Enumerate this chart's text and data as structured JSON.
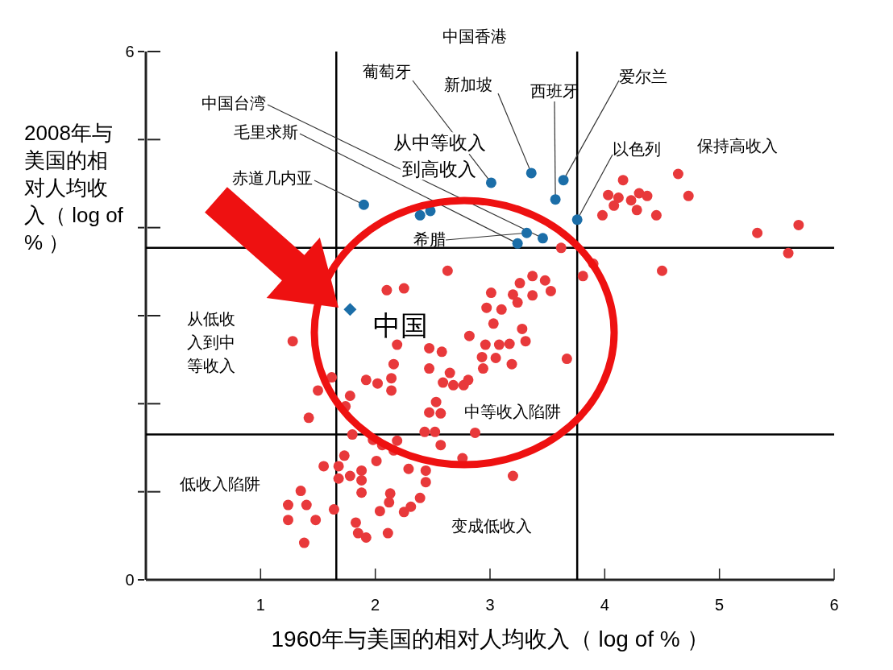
{
  "chart_data": {
    "type": "scatter",
    "xlabel": "1960年与美国的相对人均收入（ log of % ）",
    "ylabel": "2008年与美国的相对人均收入（ log of % ）",
    "xlim": [
      0,
      6
    ],
    "ylim": [
      0,
      6
    ],
    "xticks": [
      1,
      2,
      3,
      4,
      5,
      6
    ],
    "yticks": [
      0,
      {
        "value": 1,
        "label": null
      },
      {
        "value": 2,
        "label": null
      },
      {
        "value": 3,
        "label": null
      },
      {
        "value": 4,
        "label": null
      },
      {
        "value": 5,
        "label": null
      },
      6
    ],
    "ref_lines": [
      {
        "axis": "x",
        "value": 1.66,
        "color": "#000000"
      },
      {
        "axis": "x",
        "value": 3.76,
        "color": "#000000"
      },
      {
        "axis": "y",
        "value": 3.77,
        "color": "#000000"
      },
      {
        "axis": "y",
        "value": 1.65,
        "color": "#000000"
      }
    ],
    "series": [
      {
        "type": "scatter",
        "marker": "circle",
        "color": "#e8393b",
        "x": [
          4.16,
          4.03,
          4.12,
          4.08,
          4.23,
          4.3,
          4.37,
          4.28,
          3.98,
          4.45,
          4.64,
          4.73,
          5.33,
          5.69,
          5.6,
          4.5,
          3.81,
          3.62,
          3.9,
          2.63,
          2.1,
          2.25,
          1.28,
          1.62,
          1.5,
          1.42,
          3.01,
          3.26,
          3.37,
          3.48,
          3.53,
          3.2,
          3.24,
          3.37,
          2.97,
          3.1,
          3.03,
          3.28,
          2.82,
          2.96,
          3.08,
          3.17,
          3.31,
          2.93,
          3.05,
          3.19,
          3.67,
          2.94,
          2.19,
          2.47,
          2.58,
          2.16,
          2.47,
          2.65,
          1.92,
          2.02,
          2.14,
          2.14,
          2.59,
          2.68,
          2.77,
          2.81,
          1.78,
          1.74,
          2.53,
          2.47,
          2.57,
          2.43,
          2.52,
          2.87,
          1.8,
          2.19,
          2.57,
          1.98,
          2.06,
          2.16,
          1.73,
          1.55,
          1.68,
          1.68,
          1.78,
          1.88,
          1.88,
          1.88,
          2.01,
          2.29,
          2.44,
          2.44,
          2.76,
          3.2,
          1.35,
          1.24,
          1.4,
          1.64,
          1.24,
          1.48,
          1.38,
          2.13,
          2.12,
          2.04,
          2.25,
          2.31,
          2.39,
          1.83,
          1.85,
          1.92,
          2.11
        ],
        "values": [
          4.54,
          4.37,
          4.34,
          4.25,
          4.31,
          4.39,
          4.36,
          4.2,
          4.14,
          4.14,
          4.61,
          4.36,
          3.94,
          4.03,
          3.71,
          3.51,
          3.45,
          3.77,
          3.59,
          3.51,
          3.29,
          3.31,
          2.71,
          2.3,
          2.15,
          1.84,
          3.26,
          3.37,
          3.45,
          3.4,
          3.28,
          3.24,
          3.15,
          3.23,
          3.09,
          3.07,
          2.91,
          2.85,
          2.77,
          2.67,
          2.67,
          2.68,
          2.71,
          2.53,
          2.52,
          2.45,
          2.51,
          2.4,
          2.67,
          2.63,
          2.59,
          2.45,
          2.4,
          2.35,
          2.27,
          2.23,
          2.29,
          2.15,
          2.24,
          2.21,
          2.21,
          2.27,
          2.09,
          1.97,
          2.02,
          1.9,
          1.89,
          1.68,
          1.68,
          1.67,
          1.65,
          1.58,
          1.53,
          1.59,
          1.53,
          1.47,
          1.41,
          1.29,
          1.29,
          1.15,
          1.18,
          1.24,
          1.13,
          0.99,
          1.35,
          1.26,
          1.24,
          1.11,
          1.38,
          1.18,
          1.01,
          0.85,
          0.85,
          0.8,
          0.68,
          0.68,
          0.42,
          0.98,
          0.88,
          0.78,
          0.77,
          0.83,
          0.93,
          0.65,
          0.53,
          0.48,
          0.53
        ]
      },
      {
        "type": "scatter",
        "marker": "circle",
        "color": "#1b6ea8",
        "x": [
          1.9,
          2.39,
          2.48,
          3.01,
          3.36,
          3.64,
          3.57,
          3.76,
          3.32,
          3.46,
          3.24
        ],
        "values": [
          4.26,
          4.14,
          4.19,
          4.51,
          4.62,
          4.54,
          4.32,
          4.09,
          3.94,
          3.88,
          3.82
        ]
      },
      {
        "type": "scatter",
        "marker": "diamond",
        "color": "#1b6ea8",
        "x": [
          1.78
        ],
        "values": [
          3.07
        ]
      }
    ],
    "annotations": [
      "中国香港",
      {
        "text": "葡萄牙",
        "x": 3.01,
        "y": 4.51
      },
      {
        "text": "新加坡",
        "x": 3.36,
        "y": 4.62
      },
      {
        "text": "西班牙",
        "x": 3.57,
        "y": 4.32
      },
      {
        "text": "爱尔兰",
        "x": 3.64,
        "y": 4.54
      },
      {
        "text": "中国台湾",
        "x": 3.46,
        "y": 3.88
      },
      {
        "text": "毛里求斯",
        "x": 3.24,
        "y": 3.82
      },
      {
        "text": "以色列",
        "x": 3.76,
        "y": 4.09
      },
      {
        "text": "赤道几内亚",
        "x": 1.9,
        "y": 4.26
      },
      {
        "text": "希腊",
        "x": 3.32,
        "y": 3.94
      },
      {
        "text": "中国",
        "x": 1.78,
        "y": 3.07
      },
      "从中等收入到高收入",
      "保持高收入",
      "从低收入到中等收入",
      "中等收入陷阱",
      "低收入陷阱",
      "变成低收入"
    ]
  }
}
